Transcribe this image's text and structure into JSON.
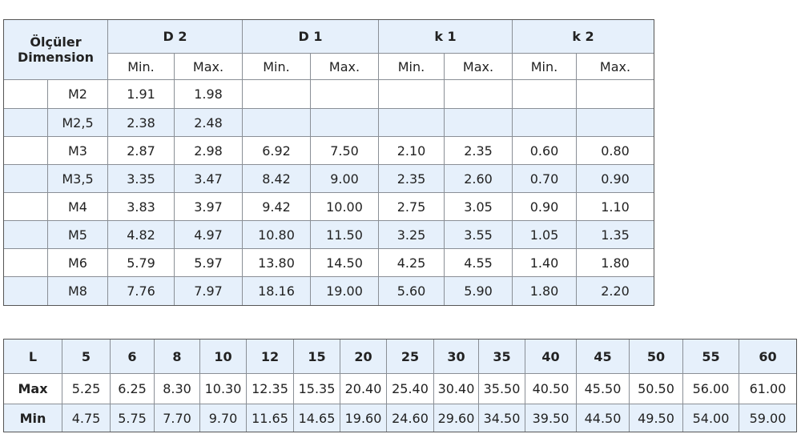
{
  "table1": {
    "dimension": [
      "Ölçüler",
      "Dimension"
    ],
    "groups": [
      "D 2",
      "D 1",
      "k 1",
      "k 2"
    ],
    "sub": [
      "Min.",
      "Max.",
      "Min.",
      "Max.",
      "Min.",
      "Max.",
      "Min.",
      "Max."
    ],
    "rows": [
      {
        "size": "M2",
        "values": [
          "1.91",
          "1.98",
          null,
          null,
          null,
          null,
          null,
          null
        ]
      },
      {
        "size": "M2,5",
        "values": [
          "2.38",
          "2.48",
          null,
          null,
          null,
          null,
          null,
          null
        ]
      },
      {
        "size": "M3",
        "values": [
          "2.87",
          "2.98",
          "6.92",
          "7.50",
          "2.10",
          "2.35",
          "0.60",
          "0.80"
        ]
      },
      {
        "size": "M3,5",
        "values": [
          "3.35",
          "3.47",
          "8.42",
          "9.00",
          "2.35",
          "2.60",
          "0.70",
          "0.90"
        ]
      },
      {
        "size": "M4",
        "values": [
          "3.83",
          "3.97",
          "9.42",
          "10.00",
          "2.75",
          "3.05",
          "0.90",
          "1.10"
        ]
      },
      {
        "size": "M5",
        "values": [
          "4.82",
          "4.97",
          "10.80",
          "11.50",
          "3.25",
          "3.55",
          "1.05",
          "1.35"
        ]
      },
      {
        "size": "M6",
        "values": [
          "5.79",
          "5.97",
          "13.80",
          "14.50",
          "4.25",
          "4.55",
          "1.40",
          "1.80"
        ]
      },
      {
        "size": "M8",
        "values": [
          "7.76",
          "7.97",
          "18.16",
          "19.00",
          "5.60",
          "5.90",
          "1.80",
          "2.20"
        ]
      }
    ]
  },
  "table2": {
    "header": [
      "L",
      "5",
      "6",
      "8",
      "10",
      "12",
      "15",
      "20",
      "25",
      "30",
      "35",
      "40",
      "45",
      "50",
      "55",
      "60"
    ],
    "rows": [
      {
        "label": "Max",
        "values": [
          "5.25",
          "6.25",
          "8.30",
          "10.30",
          "12.35",
          "15.35",
          "20.40",
          "25.40",
          "30.40",
          "35.50",
          "40.50",
          "45.50",
          "50.50",
          "56.00",
          "61.00"
        ]
      },
      {
        "label": "Min",
        "values": [
          "4.75",
          "5.75",
          "7.70",
          "9.70",
          "11.65",
          "14.65",
          "19.60",
          "24.60",
          "29.60",
          "34.50",
          "39.50",
          "44.50",
          "49.50",
          "54.00",
          "59.00"
        ]
      }
    ]
  }
}
